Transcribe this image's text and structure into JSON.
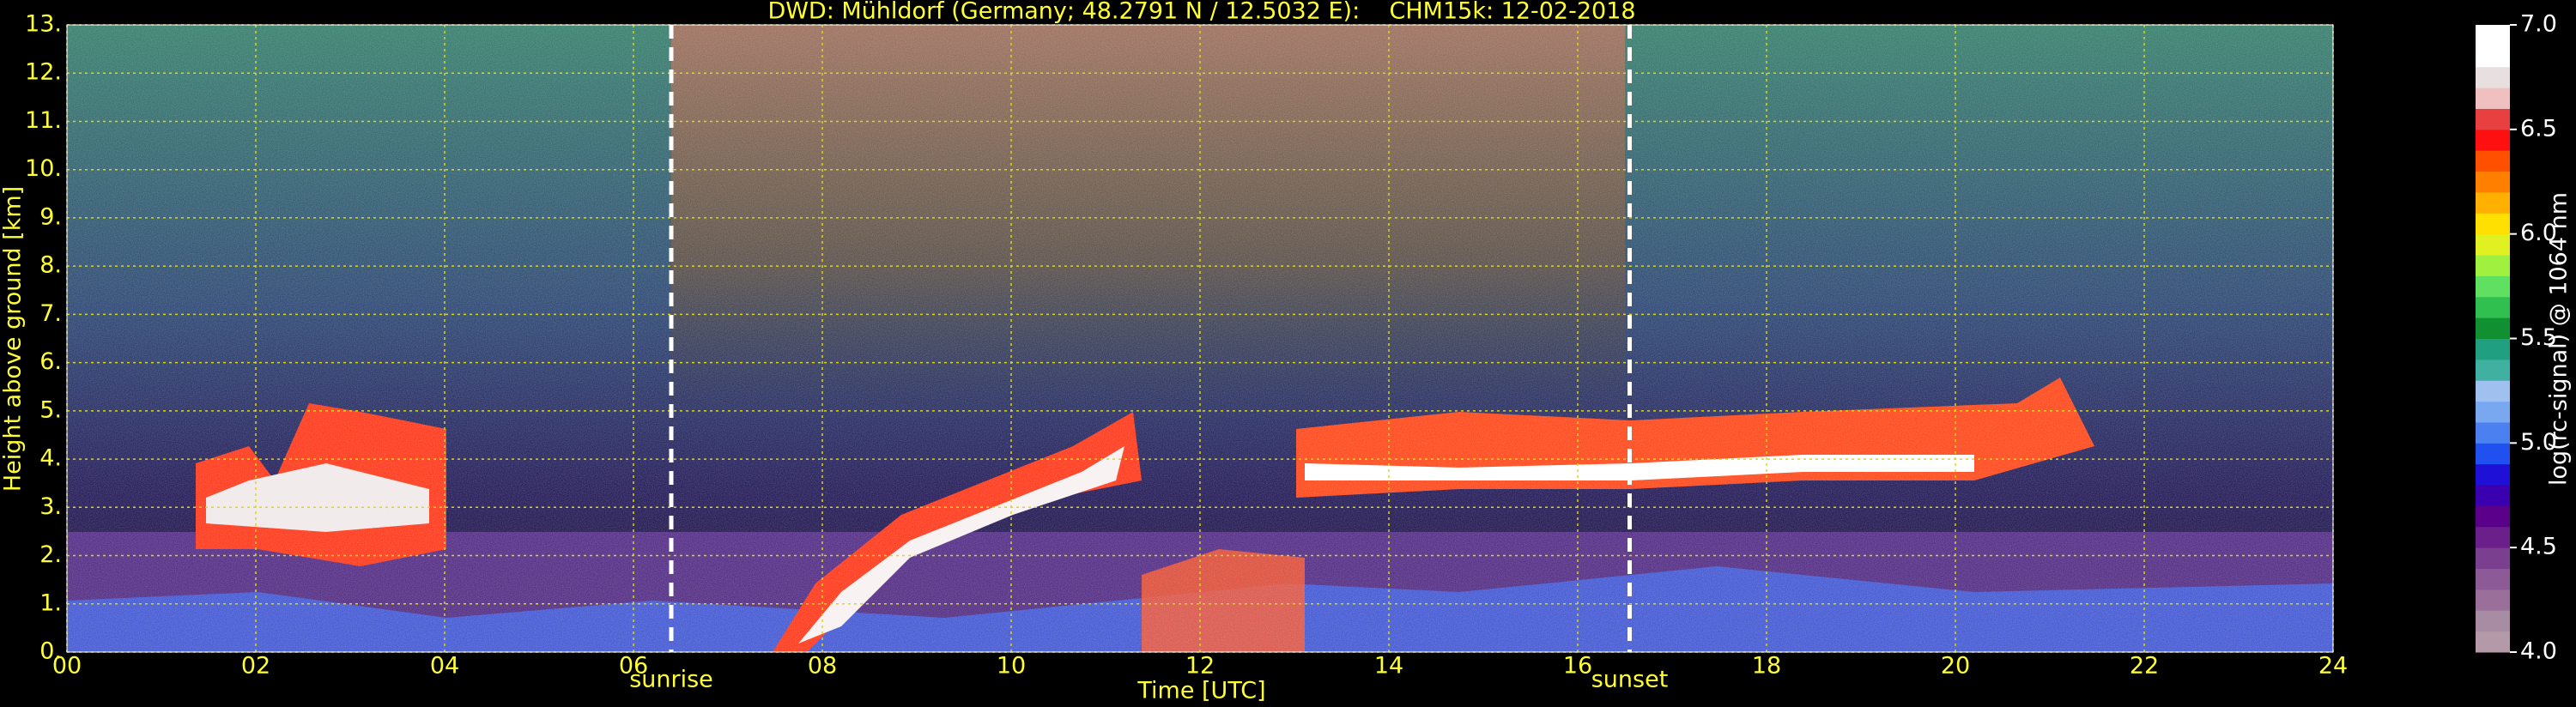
{
  "chart_data": {
    "type": "heatmap",
    "title": "DWD: Mühldorf (Germany; 48.2791 N / 12.5032 E):    CHM15k: 12-02-2018",
    "x_label": "Time [UTC]",
    "y_label": "Height above ground [km]",
    "colorbar_label": "log(rc-signal) @ 1064 nm",
    "xlim": [
      0,
      24
    ],
    "ylim": [
      0,
      13
    ],
    "clim": [
      4,
      7
    ],
    "xticks": [
      {
        "value": 0,
        "label": "00"
      },
      {
        "value": 2,
        "label": "02"
      },
      {
        "value": 4,
        "label": "04"
      },
      {
        "value": 6,
        "label": "06"
      },
      {
        "value": 8,
        "label": "08"
      },
      {
        "value": 10,
        "label": "10"
      },
      {
        "value": 12,
        "label": "12"
      },
      {
        "value": 14,
        "label": "14"
      },
      {
        "value": 16,
        "label": "16"
      },
      {
        "value": 18,
        "label": "18"
      },
      {
        "value": 20,
        "label": "20"
      },
      {
        "value": 22,
        "label": "22"
      },
      {
        "value": 24,
        "label": "24"
      }
    ],
    "yticks": [
      {
        "value": 0,
        "label": "0."
      },
      {
        "value": 1,
        "label": "1."
      },
      {
        "value": 2,
        "label": "2."
      },
      {
        "value": 3,
        "label": "3."
      },
      {
        "value": 4,
        "label": "4."
      },
      {
        "value": 5,
        "label": "5."
      },
      {
        "value": 6,
        "label": "6."
      },
      {
        "value": 7,
        "label": "7."
      },
      {
        "value": 8,
        "label": "8."
      },
      {
        "value": 9,
        "label": "9."
      },
      {
        "value": 10,
        "label": "10."
      },
      {
        "value": 11,
        "label": "11."
      },
      {
        "value": 12,
        "label": "12."
      },
      {
        "value": 13,
        "label": "13."
      }
    ],
    "cticks": [
      {
        "value": 4,
        "label": "4.0"
      },
      {
        "value": 4.5,
        "label": "4.5"
      },
      {
        "value": 5,
        "label": "5.0"
      },
      {
        "value": 5.5,
        "label": "5.5"
      },
      {
        "value": 6,
        "label": "6.0"
      },
      {
        "value": 6.5,
        "label": "6.5"
      },
      {
        "value": 7,
        "label": "7.0"
      }
    ],
    "colormap": [
      "#b49aa8",
      "#a88ca3",
      "#9a6f9a",
      "#8c5a96",
      "#7a3f8f",
      "#6a1f8a",
      "#5a008a",
      "#3a00b0",
      "#1f10d8",
      "#2050f0",
      "#4a80f0",
      "#7aa8f0",
      "#a0c0f0",
      "#40b0a0",
      "#20a080",
      "#109030",
      "#30c050",
      "#60e060",
      "#a0f040",
      "#e0f020",
      "#ffe000",
      "#ffb000",
      "#ff8000",
      "#ff5000",
      "#ff1010",
      "#e84040",
      "#f0c0c0",
      "#e8e0e0",
      "#ffffff",
      "#ffffff"
    ],
    "grid": true,
    "grid_color": "#d8d820",
    "text_color": "#ffff33",
    "annotations": [
      {
        "text": "sunrise",
        "x": 6.4
      },
      {
        "text": "sunset",
        "x": 16.55
      }
    ]
  }
}
